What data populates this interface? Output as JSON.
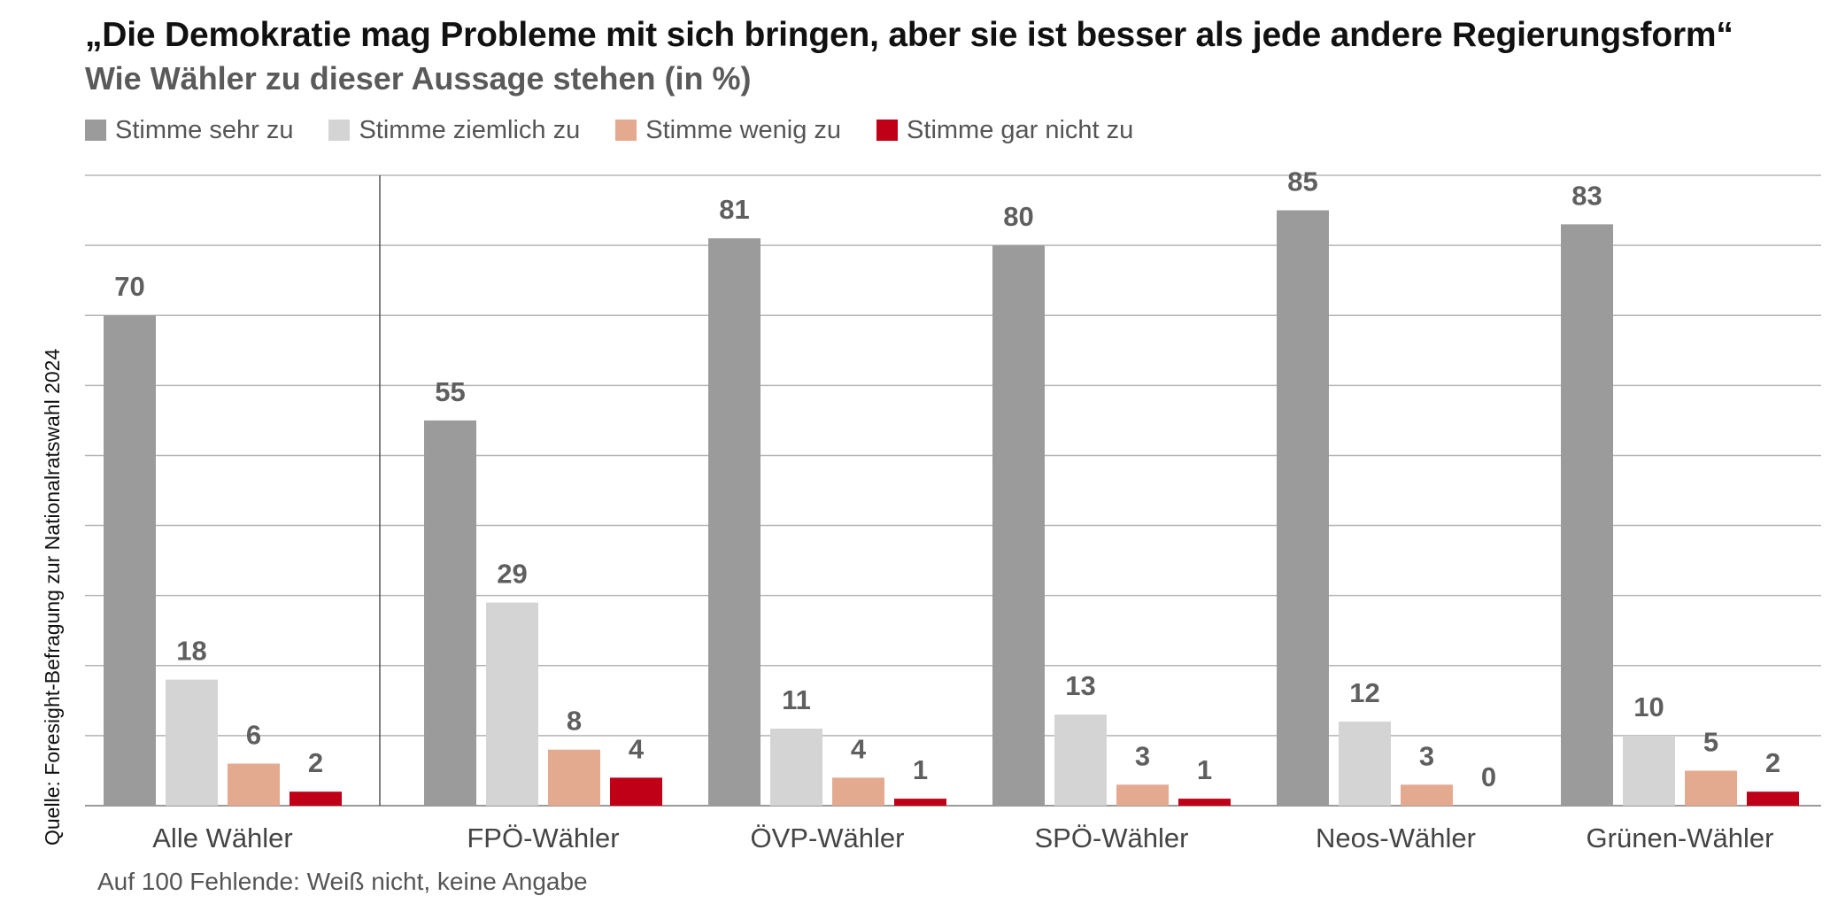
{
  "title": "„Die Demokratie mag Probleme mit sich bringen, aber sie ist besser als jede andere Regierungsform“",
  "subtitle": "Wie Wähler zu dieser Aussage stehen (in %)",
  "source": "Quelle: Foresight-Befragung zur Nationalratswahl 2024",
  "footnote": "Auf 100 Fehlende: Weiß nicht, keine Angabe",
  "chart_data": {
    "type": "bar",
    "title": "„Die Demokratie mag Probleme mit sich bringen, aber sie ist besser als jede andere Regierungsform“",
    "subtitle": "Wie Wähler zu dieser Aussage stehen (in %)",
    "xlabel": "",
    "ylabel": "",
    "ylim": [
      0,
      90
    ],
    "grid": true,
    "legend_position": "top-left",
    "categories": [
      "Alle Wähler",
      "FPÖ-Wähler",
      "ÖVP-Wähler",
      "SPÖ-Wähler",
      "Neos-Wähler",
      "Grünen-Wähler"
    ],
    "series": [
      {
        "name": "Stimme sehr zu",
        "color": "#9b9b9b",
        "values": [
          70,
          55,
          81,
          80,
          85,
          83
        ]
      },
      {
        "name": "Stimme ziemlich zu",
        "color": "#d4d4d4",
        "values": [
          18,
          29,
          11,
          13,
          12,
          10
        ]
      },
      {
        "name": "Stimme wenig zu",
        "color": "#e4aa90",
        "values": [
          6,
          8,
          4,
          3,
          3,
          5
        ]
      },
      {
        "name": "Stimme gar nicht zu",
        "color": "#c00017",
        "values": [
          2,
          4,
          1,
          1,
          0,
          2
        ]
      }
    ]
  }
}
